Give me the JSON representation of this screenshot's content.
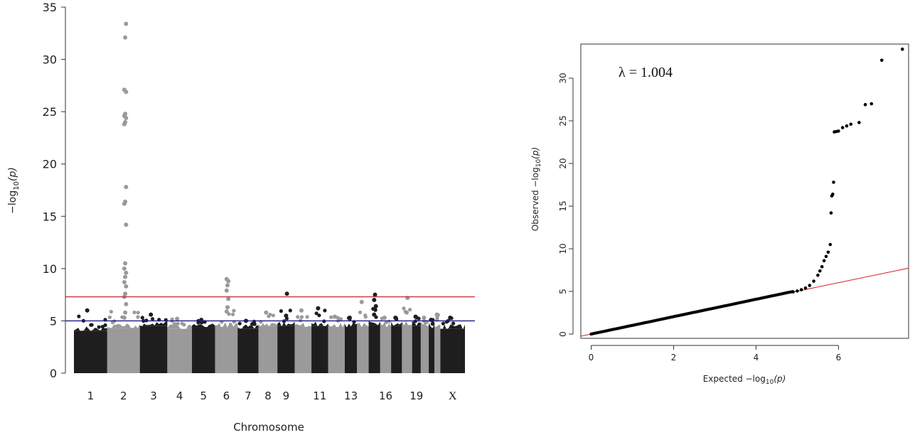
{
  "chart_data": [
    {
      "type": "scatter",
      "subtype": "manhattan",
      "xlabel": "Chromosome",
      "ylabel_prefix": "−log",
      "ylabel_sub": "10",
      "ylabel_suffix": "(p)",
      "ylim": [
        0,
        35
      ],
      "yticks": [
        "0",
        "5",
        "10",
        "15",
        "20",
        "25",
        "30",
        "35"
      ],
      "chromosome_labels": [
        "1",
        "2",
        "3",
        "4",
        "5",
        "6",
        "7",
        "8",
        "9",
        "11",
        "13",
        "16",
        "19",
        "X"
      ],
      "thresholds": [
        {
          "value": 7.3,
          "color": "#cc3333"
        },
        {
          "value": 5.0,
          "color": "#1a1a8c"
        }
      ],
      "colors": {
        "dark": "#1e1e1e",
        "light": "#9a9a9a"
      },
      "chromosomes": [
        {
          "shade": "dark",
          "base": 4.4,
          "peak": 6.0,
          "hits": []
        },
        {
          "shade": "light",
          "base": 4.7,
          "peak": 33.4,
          "hits": [
            5.3,
            5.8,
            6.6,
            7.3,
            7.6,
            8.3,
            8.7,
            9.2,
            9.6,
            10.0,
            10.5,
            14.2,
            16.2,
            16.4,
            17.8,
            23.8,
            24.0,
            24.4,
            24.6,
            24.8,
            26.9,
            27.1,
            32.1,
            33.4
          ]
        },
        {
          "shade": "dark",
          "base": 4.9,
          "peak": 5.6,
          "hits": []
        },
        {
          "shade": "light",
          "base": 4.6,
          "peak": 5.2,
          "hits": []
        },
        {
          "shade": "dark",
          "base": 4.8,
          "peak": 5.1,
          "hits": []
        },
        {
          "shade": "light",
          "base": 4.8,
          "peak": 9.0,
          "hits": [
            5.9,
            6.3,
            7.1,
            7.9,
            8.4,
            8.8,
            9.0
          ]
        },
        {
          "shade": "dark",
          "base": 4.6,
          "peak": 5.0,
          "hits": []
        },
        {
          "shade": "light",
          "base": 4.9,
          "peak": 5.8,
          "hits": []
        },
        {
          "shade": "dark",
          "base": 4.9,
          "peak": 7.6,
          "hits": [
            5.5,
            7.6
          ]
        },
        {
          "shade": "light",
          "base": 4.8,
          "peak": 6.0,
          "hits": []
        },
        {
          "shade": "dark",
          "base": 4.9,
          "peak": 6.2,
          "hits": []
        },
        {
          "shade": "light",
          "base": 4.8,
          "peak": 5.4,
          "hits": []
        },
        {
          "shade": "dark",
          "base": 4.8,
          "peak": 5.3,
          "hits": []
        },
        {
          "shade": "light",
          "base": 4.8,
          "peak": 6.8,
          "hits": []
        },
        {
          "shade": "dark",
          "base": 5.0,
          "peak": 7.5,
          "hits": [
            5.6,
            6.1,
            6.4,
            7.0,
            7.5
          ]
        },
        {
          "shade": "light",
          "base": 4.8,
          "peak": 5.3,
          "hits": []
        },
        {
          "shade": "dark",
          "base": 4.9,
          "peak": 5.3,
          "hits": []
        },
        {
          "shade": "light",
          "base": 5.0,
          "peak": 7.2,
          "hits": [
            5.8,
            7.2
          ]
        },
        {
          "shade": "dark",
          "base": 4.9,
          "peak": 5.4,
          "hits": []
        },
        {
          "shade": "light",
          "base": 4.8,
          "peak": 5.3,
          "hits": []
        },
        {
          "shade": "dark",
          "base": 4.7,
          "peak": 5.1,
          "hits": []
        },
        {
          "shade": "light",
          "base": 4.8,
          "peak": 5.6,
          "hits": []
        },
        {
          "shade": "dark",
          "base": 4.6,
          "peak": 5.3,
          "hits": []
        }
      ]
    },
    {
      "type": "scatter",
      "subtype": "qq",
      "annotation": "λ = 1.004",
      "xlabel_prefix": "Expected −log",
      "xlabel_sub": "10",
      "xlabel_suffix": "(p)",
      "ylabel_prefix": "Observed −log",
      "ylabel_sub": "10",
      "ylabel_suffix": "(p)",
      "xlim": [
        -0.25,
        7.7
      ],
      "ylim": [
        -0.5,
        34
      ],
      "xticks": [
        "0",
        "2",
        "4",
        "6"
      ],
      "yticks": [
        "0",
        "5",
        "10",
        "15",
        "20",
        "25",
        "30"
      ],
      "reference_line": {
        "slope": 1.004,
        "intercept": 0,
        "color": "#d62020"
      },
      "points": [
        [
          4.9,
          4.95
        ],
        [
          5.0,
          5.05
        ],
        [
          5.1,
          5.2
        ],
        [
          5.2,
          5.4
        ],
        [
          5.3,
          5.7
        ],
        [
          5.4,
          6.2
        ],
        [
          5.5,
          6.9
        ],
        [
          5.55,
          7.4
        ],
        [
          5.6,
          7.9
        ],
        [
          5.65,
          8.6
        ],
        [
          5.7,
          9.1
        ],
        [
          5.75,
          9.6
        ],
        [
          5.8,
          10.5
        ],
        [
          5.82,
          14.2
        ],
        [
          5.84,
          16.2
        ],
        [
          5.86,
          16.4
        ],
        [
          5.88,
          17.8
        ],
        [
          5.9,
          23.7
        ],
        [
          5.95,
          23.75
        ],
        [
          6.0,
          23.8
        ],
        [
          6.1,
          24.2
        ],
        [
          6.2,
          24.4
        ],
        [
          6.3,
          24.6
        ],
        [
          6.5,
          24.8
        ],
        [
          6.65,
          26.9
        ],
        [
          6.8,
          27.0
        ],
        [
          7.05,
          32.1
        ],
        [
          7.55,
          33.4
        ]
      ]
    }
  ]
}
